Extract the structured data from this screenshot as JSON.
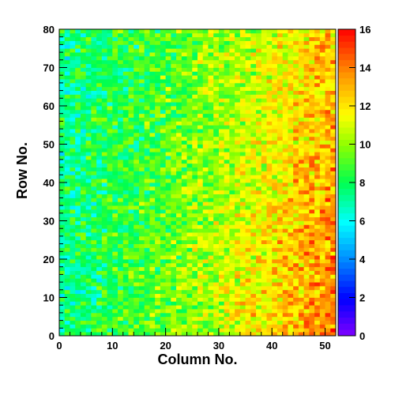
{
  "chart_data": {
    "type": "heatmap",
    "title": "",
    "xlabel": "Column No.",
    "ylabel": "Row No.",
    "xlim": [
      0,
      52
    ],
    "ylim": [
      0,
      80
    ],
    "x_bins": 52,
    "y_bins": 80,
    "x_ticks": [
      0,
      10,
      20,
      30,
      40,
      50
    ],
    "y_ticks": [
      0,
      10,
      20,
      30,
      40,
      50,
      60,
      70,
      80
    ],
    "z_range": [
      0,
      16
    ],
    "z_ticks": [
      0,
      2,
      4,
      6,
      8,
      10,
      12,
      14,
      16
    ],
    "colormap": "rainbow (violet-blue-cyan-green-yellow-orange-red)",
    "grid": false,
    "legend": "colorbar right",
    "z_model": {
      "description": "approximate counts per bin; left columns ~7-8 (cyan-green), rising toward right ~12-14 (yellow-orange), highest near lower-right",
      "base_left": 7.5,
      "base_right": 12.5,
      "lower_right_boost": 1.5,
      "noise_spread": 2.0
    }
  }
}
